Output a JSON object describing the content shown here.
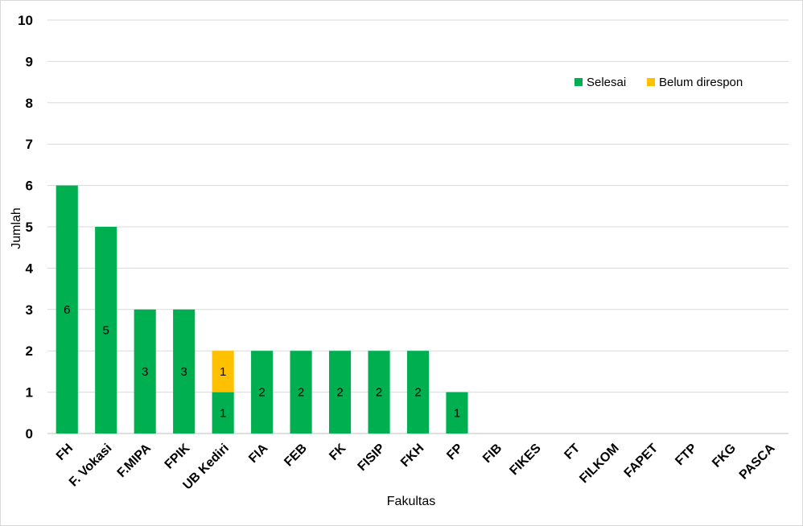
{
  "chart_data": {
    "type": "bar",
    "stacked": true,
    "categories": [
      "FH",
      "F. Vokasi",
      "F.MIPA",
      "FPIK",
      "UB Kediri",
      "FIA",
      "FEB",
      "FK",
      "FISIP",
      "FKH",
      "FP",
      "FIB",
      "FIKES",
      "FT",
      "FILKOM",
      "FAPET",
      "FTP",
      "FKG",
      "PASCA"
    ],
    "series": [
      {
        "name": "Selesai",
        "color": "#00b050",
        "values": [
          6,
          5,
          3,
          3,
          1,
          2,
          2,
          2,
          2,
          2,
          1,
          0,
          0,
          0,
          0,
          0,
          0,
          0,
          0
        ]
      },
      {
        "name": "Belum direspon",
        "color": "#ffc000",
        "values": [
          0,
          0,
          0,
          0,
          1,
          0,
          0,
          0,
          0,
          0,
          0,
          0,
          0,
          0,
          0,
          0,
          0,
          0,
          0
        ]
      }
    ],
    "title": "",
    "xlabel": "Fakultas",
    "ylabel": "Jumlah",
    "ylim": [
      0,
      10
    ],
    "yticks": [
      "0",
      "1",
      "2",
      "3",
      "4",
      "5",
      "6",
      "7",
      "8",
      "9",
      "10"
    ],
    "grid": true,
    "legend_position": "top-right"
  }
}
